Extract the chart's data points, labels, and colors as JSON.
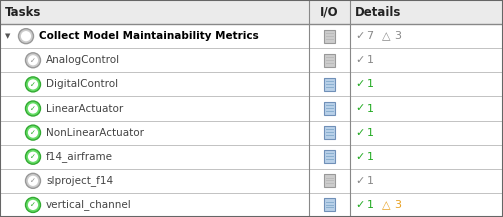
{
  "figsize": [
    5.03,
    2.17
  ],
  "dpi": 100,
  "bg_color": "#ffffff",
  "header_bg": "#ebebeb",
  "row_bg": "#ffffff",
  "border_color": "#aaaaaa",
  "col_splits": [
    0.615,
    0.695,
    1.0
  ],
  "headers": [
    "Tasks",
    "I/O",
    "Details"
  ],
  "header_fontsize": 8.5,
  "row_fontsize": 7.5,
  "task_text_color": "#444444",
  "task_bold_color": "#000000",
  "rows": [
    {
      "indent": 0,
      "has_arrow": true,
      "icon": "gray_circle",
      "bold": true,
      "task": "Collect Model Maintainability Metrics",
      "io_colored": false,
      "check_color": "#888888",
      "check_count": "7",
      "triangle_color": "#888888",
      "triangle_count": "3"
    },
    {
      "indent": 1,
      "has_arrow": false,
      "icon": "gray_circle_check",
      "bold": false,
      "task": "AnalogControl",
      "io_colored": false,
      "check_color": "#888888",
      "check_count": "1",
      "triangle_color": null,
      "triangle_count": null
    },
    {
      "indent": 1,
      "has_arrow": false,
      "icon": "green_circle_check",
      "bold": false,
      "task": "DigitalControl",
      "io_colored": true,
      "check_color": "#22aa22",
      "check_count": "1",
      "triangle_color": null,
      "triangle_count": null
    },
    {
      "indent": 1,
      "has_arrow": false,
      "icon": "green_circle_check",
      "bold": false,
      "task": "LinearActuator",
      "io_colored": true,
      "check_color": "#22aa22",
      "check_count": "1",
      "triangle_color": null,
      "triangle_count": null
    },
    {
      "indent": 1,
      "has_arrow": false,
      "icon": "green_circle_check",
      "bold": false,
      "task": "NonLinearActuator",
      "io_colored": true,
      "check_color": "#22aa22",
      "check_count": "1",
      "triangle_color": null,
      "triangle_count": null
    },
    {
      "indent": 1,
      "has_arrow": false,
      "icon": "green_circle_check",
      "bold": false,
      "task": "f14_airframe",
      "io_colored": true,
      "check_color": "#22aa22",
      "check_count": "1",
      "triangle_color": null,
      "triangle_count": null
    },
    {
      "indent": 1,
      "has_arrow": false,
      "icon": "gray_circle_check",
      "bold": false,
      "task": "slproject_f14",
      "io_colored": false,
      "check_color": "#888888",
      "check_count": "1",
      "triangle_color": null,
      "triangle_count": null
    },
    {
      "indent": 1,
      "has_arrow": false,
      "icon": "green_circle_check",
      "bold": false,
      "task": "vertical_channel",
      "io_colored": true,
      "check_color": "#22aa22",
      "check_count": "1",
      "triangle_color": "#e8a020",
      "triangle_count": "3"
    }
  ]
}
